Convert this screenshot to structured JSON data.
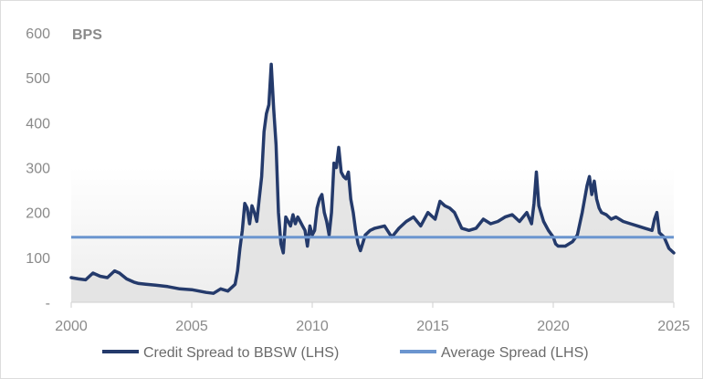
{
  "chart_data": {
    "type": "line",
    "title": "",
    "ylabel": "BPS",
    "xlabel": "",
    "xlim": [
      2000,
      2025
    ],
    "ylim": [
      0,
      600
    ],
    "x_ticks": [
      "2000",
      "2005",
      "2010",
      "2015",
      "2020",
      "2025"
    ],
    "y_ticks": [
      "-",
      "100",
      "200",
      "300",
      "400",
      "500",
      "600"
    ],
    "grid": false,
    "legend_position": "bottom",
    "series": [
      {
        "name": "Credit Spread to BBSW (LHS)",
        "color": "#243a6b",
        "fill": "#e2e2e2",
        "x": [
          2000.0,
          2000.3,
          2000.6,
          2000.9,
          2001.2,
          2001.5,
          2001.8,
          2002.0,
          2002.3,
          2002.6,
          2002.8,
          2003.1,
          2003.5,
          2004.0,
          2004.5,
          2005.0,
          2005.3,
          2005.6,
          2005.9,
          2006.2,
          2006.5,
          2006.8,
          2006.9,
          2007.0,
          2007.1,
          2007.2,
          2007.3,
          2007.4,
          2007.5,
          2007.6,
          2007.7,
          2007.8,
          2007.9,
          2008.0,
          2008.1,
          2008.2,
          2008.3,
          2008.4,
          2008.5,
          2008.6,
          2008.7,
          2008.8,
          2008.9,
          2009.0,
          2009.1,
          2009.2,
          2009.3,
          2009.4,
          2009.5,
          2009.6,
          2009.7,
          2009.8,
          2009.9,
          2010.0,
          2010.1,
          2010.2,
          2010.3,
          2010.4,
          2010.5,
          2010.6,
          2010.7,
          2010.8,
          2010.9,
          2011.0,
          2011.1,
          2011.2,
          2011.3,
          2011.4,
          2011.5,
          2011.6,
          2011.7,
          2011.8,
          2011.9,
          2012.0,
          2012.2,
          2012.4,
          2012.6,
          2013.0,
          2013.3,
          2013.6,
          2013.9,
          2014.2,
          2014.5,
          2014.8,
          2015.1,
          2015.3,
          2015.5,
          2015.7,
          2015.9,
          2016.2,
          2016.5,
          2016.8,
          2017.1,
          2017.4,
          2017.7,
          2018.0,
          2018.3,
          2018.6,
          2018.9,
          2019.1,
          2019.2,
          2019.3,
          2019.4,
          2019.6,
          2019.8,
          2020.0,
          2020.1,
          2020.2,
          2020.5,
          2020.8,
          2021.0,
          2021.2,
          2021.4,
          2021.5,
          2021.6,
          2021.7,
          2021.8,
          2021.9,
          2022.0,
          2022.2,
          2022.4,
          2022.6,
          2022.9,
          2023.2,
          2023.5,
          2023.8,
          2024.1,
          2024.2,
          2024.3,
          2024.4,
          2024.6,
          2024.8,
          2025.0
        ],
        "y": [
          55,
          52,
          50,
          65,
          58,
          55,
          70,
          65,
          52,
          45,
          42,
          40,
          38,
          35,
          30,
          28,
          25,
          22,
          20,
          30,
          25,
          40,
          70,
          120,
          160,
          220,
          210,
          175,
          215,
          200,
          180,
          230,
          280,
          380,
          420,
          440,
          530,
          430,
          350,
          200,
          130,
          110,
          190,
          180,
          170,
          195,
          175,
          190,
          180,
          170,
          160,
          125,
          170,
          150,
          160,
          210,
          230,
          240,
          200,
          180,
          150,
          200,
          310,
          300,
          345,
          290,
          280,
          275,
          290,
          230,
          200,
          160,
          130,
          115,
          150,
          160,
          165,
          170,
          145,
          165,
          180,
          190,
          170,
          200,
          185,
          225,
          215,
          210,
          200,
          165,
          160,
          165,
          185,
          175,
          180,
          190,
          195,
          180,
          200,
          175,
          220,
          290,
          215,
          180,
          160,
          145,
          130,
          125,
          125,
          135,
          150,
          200,
          260,
          280,
          240,
          270,
          230,
          210,
          200,
          195,
          185,
          190,
          180,
          175,
          170,
          165,
          160,
          185,
          200,
          155,
          145,
          120,
          110
        ]
      },
      {
        "name": "Average Spread (LHS)",
        "color": "#6b95cf",
        "x": [
          2000,
          2025
        ],
        "y": [
          145,
          145
        ]
      }
    ]
  }
}
